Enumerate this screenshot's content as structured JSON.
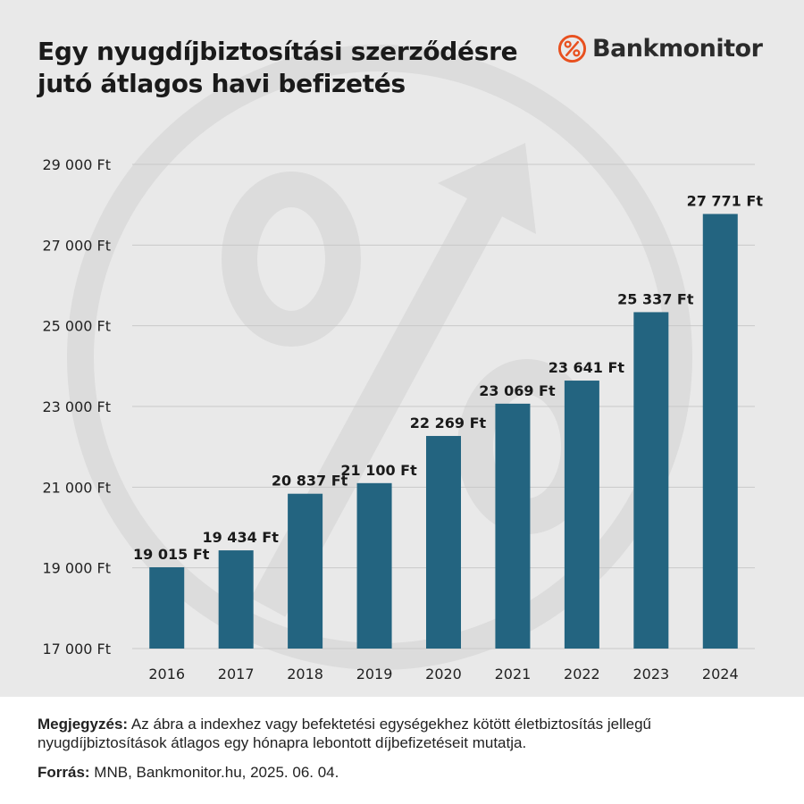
{
  "title_lines": [
    "Egy nyugdíjbiztosítási szerződésre",
    "jutó átlagos havi befizetés"
  ],
  "brand": {
    "name": "Bankmonitor",
    "icon": "percent-circle-icon",
    "accent": "#e8501f"
  },
  "colors": {
    "bar": "#236480",
    "panel_bg": "#e9e9e9",
    "gridline": "#c9c9c9",
    "text": "#1a1a1a"
  },
  "chart_data": {
    "type": "bar",
    "categories": [
      "2016",
      "2017",
      "2018",
      "2019",
      "2020",
      "2021",
      "2022",
      "2023",
      "2024"
    ],
    "values": [
      19015,
      19434,
      20837,
      21100,
      22269,
      23069,
      23641,
      25337,
      27771
    ],
    "value_labels": [
      "19 015 Ft",
      "19 434 Ft",
      "20 837 Ft",
      "21 100 Ft",
      "22 269 Ft",
      "23 069 Ft",
      "23 641 Ft",
      "25 337 Ft",
      "27 771 Ft"
    ],
    "yticks": [
      17000,
      19000,
      21000,
      23000,
      25000,
      27000,
      29000
    ],
    "ytick_labels": [
      "17 000 Ft",
      "19 000 Ft",
      "21 000 Ft",
      "23 000 Ft",
      "25 000 Ft",
      "27 000 Ft",
      "29 000 Ft"
    ],
    "ylim": [
      17000,
      29000
    ],
    "grid": true,
    "xlabel": "",
    "ylabel": ""
  },
  "footer": {
    "note_label": "Megjegyzés:",
    "note_text": " Az ábra a indexhez vagy befektetési egységekhez kötött életbiztosítás jellegű nyugdíjbiztosítások átlagos egy hónapra lebontott díjbefizetéseit mutatja.",
    "source_label": "Forrás:",
    "source_text": " MNB, Bankmonitor.hu, 2025. 06. 04."
  }
}
